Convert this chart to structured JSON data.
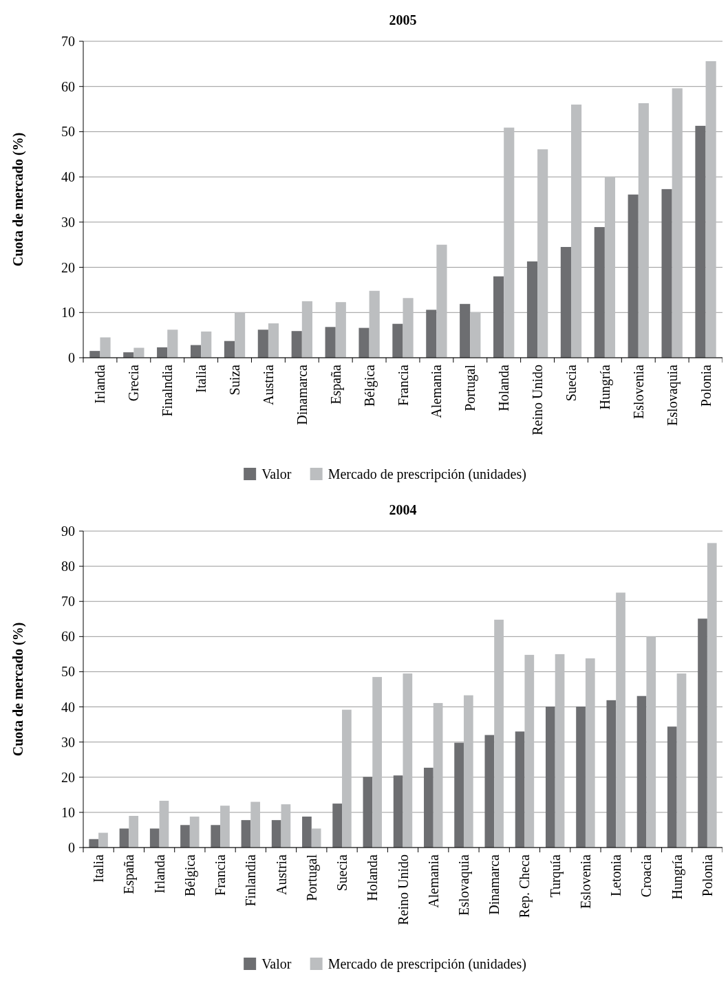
{
  "chart_data": [
    {
      "type": "bar",
      "title": "2005",
      "ylabel": "Cuota de mercado (%)",
      "categories": [
        "Irlanda",
        "Grecia",
        "Finalndia",
        "Italia",
        "Suiza",
        "Austria",
        "Dinamarca",
        "España",
        "Bélgica",
        "Francia",
        "Alemania",
        "Portugal",
        "Holanda",
        "Reino Unido",
        "Suecia",
        "Hungría",
        "Eslovenia",
        "Eslovaquia",
        "Polonia"
      ],
      "series": [
        {
          "name": "Valor",
          "color": "#6d6e71",
          "values": [
            1.5,
            1.2,
            2.3,
            2.8,
            3.7,
            6.2,
            5.9,
            6.8,
            6.6,
            7.5,
            10.6,
            11.9,
            18,
            21.3,
            24.5,
            28.9,
            36.1,
            37.3,
            51.3
          ]
        },
        {
          "name": "Mercado de prescripción (unidades)",
          "color": "#bcbec0",
          "values": [
            4.5,
            2.2,
            6.2,
            5.8,
            10,
            7.6,
            12.5,
            12.3,
            14.8,
            13.2,
            25,
            10.1,
            50.9,
            46.1,
            56,
            40,
            56.3,
            59.6,
            65.6
          ]
        }
      ],
      "ylim": [
        0,
        70
      ],
      "yticks": [
        0,
        10,
        20,
        30,
        40,
        50,
        60,
        70
      ],
      "grid": "y",
      "legend": "bottom"
    },
    {
      "type": "bar",
      "title": "2004",
      "ylabel": "Cuota de mercado (%)",
      "categories": [
        "Italia",
        "España",
        "Irlanda",
        "Bélgica",
        "Francia",
        "Finlandia",
        "Austria",
        "Portugal",
        "Suecia",
        "Holanda",
        "Reino Unido",
        "Alemania",
        "Eslovaquia",
        "Dinamarca",
        "Rep. Checa",
        "Turquía",
        "Eslovenia",
        "Letonia",
        "Croacia",
        "Hungría",
        "Polonia"
      ],
      "series": [
        {
          "name": "Valor",
          "color": "#6d6e71",
          "values": [
            2.4,
            5.4,
            5.4,
            6.4,
            6.4,
            7.8,
            7.8,
            8.8,
            12.5,
            20.1,
            20.5,
            22.7,
            29.8,
            32,
            33,
            40.1,
            40.1,
            41.9,
            43.1,
            34.4,
            65.1
          ]
        },
        {
          "name": "Mercado de prescripción (unidades)",
          "color": "#bcbec0",
          "values": [
            4.2,
            9,
            13.3,
            8.8,
            11.9,
            13,
            12.3,
            5.4,
            39.2,
            48.5,
            49.5,
            41.1,
            43.3,
            64.8,
            54.8,
            55,
            53.8,
            72.5,
            60,
            49.5,
            86.6
          ]
        }
      ],
      "ylim": [
        0,
        90
      ],
      "yticks": [
        0,
        10,
        20,
        30,
        40,
        50,
        60,
        70,
        80,
        90
      ],
      "grid": "y",
      "legend": "bottom"
    }
  ]
}
